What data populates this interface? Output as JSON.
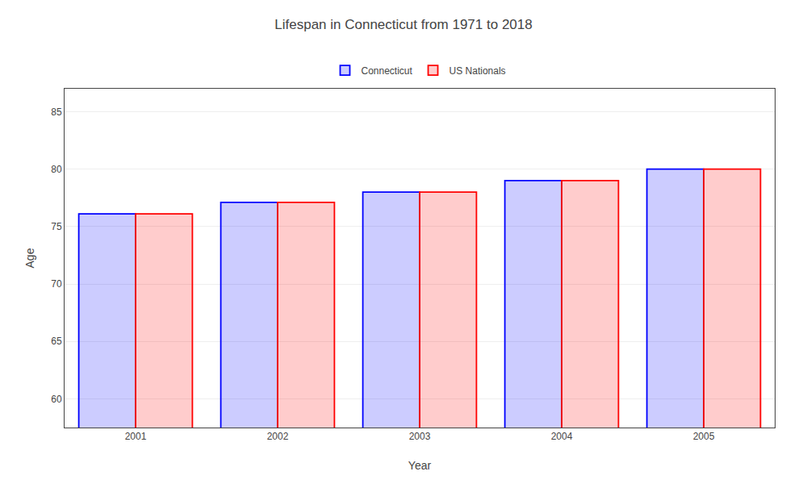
{
  "chart_data": {
    "type": "bar",
    "title": "Lifespan in Connecticut from 1971 to 2018",
    "x_label": "Year",
    "y_label": "Age",
    "categories": [
      "2001",
      "2002",
      "2003",
      "2004",
      "2005"
    ],
    "series": [
      {
        "name": "Connecticut",
        "color": "#0000ff",
        "values": [
          76.1,
          77.1,
          78.0,
          79.0,
          80.0
        ]
      },
      {
        "name": "US Nationals",
        "color": "#ff0000",
        "values": [
          76.1,
          77.1,
          78.0,
          79.0,
          80.0
        ]
      }
    ],
    "ylim": [
      57.5,
      87
    ],
    "yticks": [
      60,
      65,
      70,
      75,
      80,
      85
    ],
    "grid": true,
    "legend": "top"
  }
}
